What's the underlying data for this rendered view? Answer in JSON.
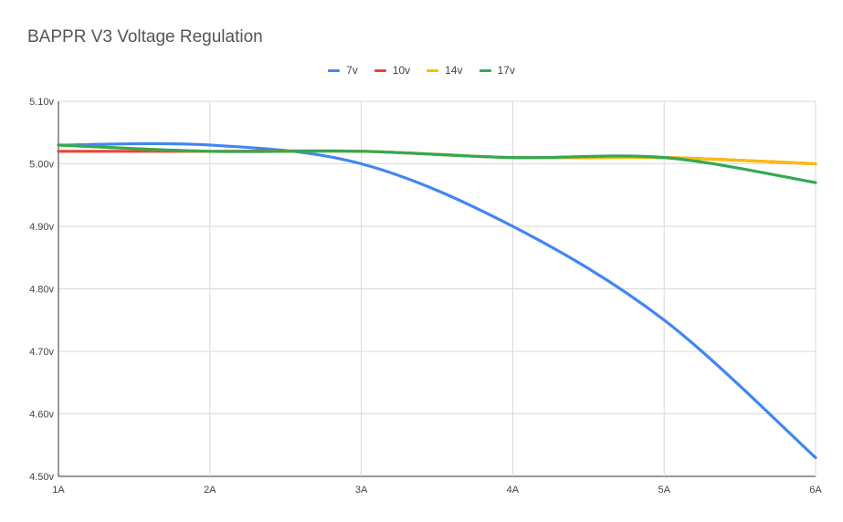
{
  "chart_data": {
    "type": "line",
    "title": "BAPPR V3 Voltage Regulation",
    "xlabel": "",
    "ylabel": "",
    "categories": [
      "1A",
      "2A",
      "3A",
      "4A",
      "5A",
      "6A"
    ],
    "x": [
      1,
      2,
      3,
      4,
      5,
      6
    ],
    "y_ticks": [
      "4.50v",
      "4.60v",
      "4.70v",
      "4.80v",
      "4.90v",
      "5.00v",
      "5.10v"
    ],
    "ylim": [
      4.5,
      5.1
    ],
    "grid": true,
    "legend": "top",
    "series": [
      {
        "name": "7v",
        "color": "#4285f4",
        "values": [
          5.03,
          5.03,
          5.0,
          4.9,
          4.75,
          4.53
        ]
      },
      {
        "name": "10v",
        "color": "#ea4335",
        "values": [
          5.02,
          5.02,
          5.02,
          5.01,
          5.01,
          5.0
        ]
      },
      {
        "name": "14v",
        "color": "#fbbc04",
        "values": [
          5.03,
          5.02,
          5.02,
          5.01,
          5.01,
          5.0
        ]
      },
      {
        "name": "17v",
        "color": "#34a853",
        "values": [
          5.03,
          5.02,
          5.02,
          5.01,
          5.01,
          4.97
        ]
      }
    ]
  }
}
